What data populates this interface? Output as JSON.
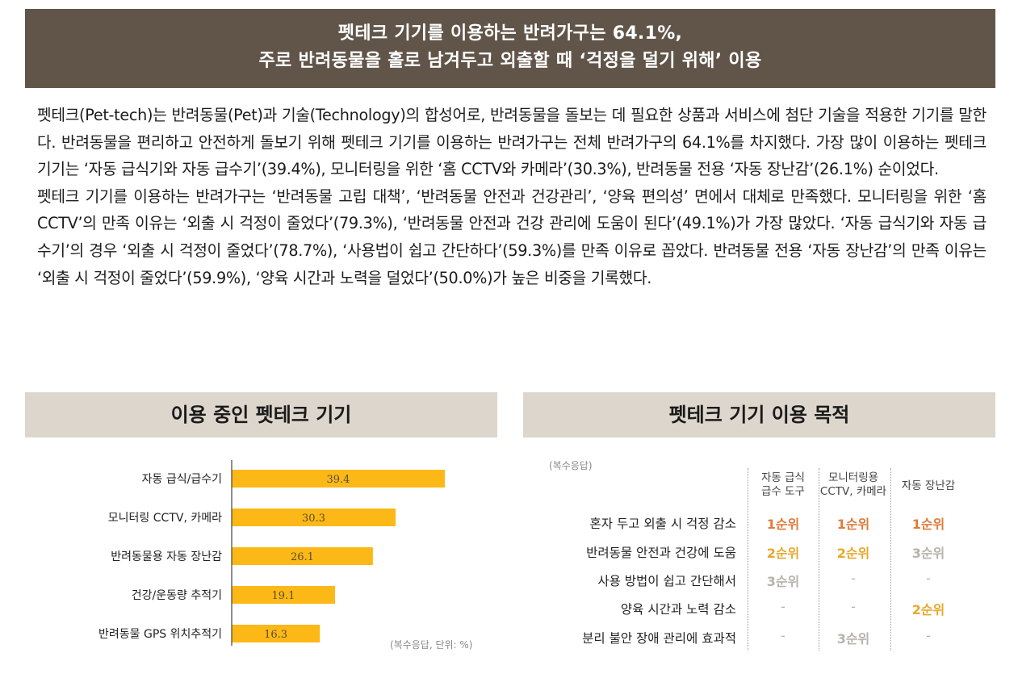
{
  "banner": {
    "line1": "펫테크 기기를 이용하는 반려가구는 64.1%,",
    "line2": "주로 반려동물을 홀로 남겨두고 외출할 때 ‘걱정을 덜기 위해’ 이용"
  },
  "paragraphs": [
    "펫테크(Pet-tech)는 반려동물(Pet)과 기술(Technology)의 합성어로, 반려동물을 돌보는 데 필요한 상품과 서비스에 첨단 기술을 적용한 기기를 말한다. 반려동물을 편리하고 안전하게 돌보기 위해 펫테크 기기를 이용하는 반려가구는 전체 반려가구의 64.1%를 차지했다. 가장 많이 이용하는 펫테크 기기는 ‘자동 급식기와 자동 급수기’(39.4%), 모니터링을 위한 ‘홈 CCTV와 카메라’(30.3%), 반려동물 전용 ‘자동 장난감’(26.1%) 순이었다.",
    "펫테크 기기를 이용하는 반려가구는 ‘반려동물 고립 대책’, ‘반려동물 안전과 건강관리’, ‘양육 편의성’ 면에서 대체로 만족했다. 모니터링을 위한 ‘홈 CCTV’의 만족 이유는 ‘외출 시 걱정이 줄었다’(79.3%), ‘반려동물 안전과 건강 관리에 도움이 된다’(49.1%)가 가장 많았다. ‘자동 급식기와 자동 급수기’의 경우 ‘외출 시 걱정이 줄었다’(78.7%), ‘사용법이 쉽고 간단하다’(59.3%)를 만족 이유로 꼽았다. 반려동물 전용 ‘자동 장난감’의 만족 이유는 ‘외출 시 걱정이 줄었다’(59.9%), ‘양육 시간과 노력을 덜었다’(50.0%)가 높은 비중을 기록했다."
  ],
  "left_section": {
    "title": "이용 중인 펫테크 기기",
    "note": "(복수응답, 단위: %)"
  },
  "right_section": {
    "title": "펫테크 기기 이용 목적",
    "note": "(복수응답)",
    "columns": [
      {
        "line1": "자동 급식",
        "line2": "급수 도구"
      },
      {
        "line1": "모니터링용",
        "line2": "CCTV, 카메라"
      },
      {
        "line1": "자동 장난감",
        "line2": ""
      }
    ],
    "rows": [
      {
        "label": "혼자 두고 외출 시 걱정 감소",
        "cells": [
          "1순위",
          "1순위",
          "1순위"
        ]
      },
      {
        "label": "반려동물 안전과 건강에 도움",
        "cells": [
          "2순위",
          "2순위",
          "3순위"
        ]
      },
      {
        "label": "사용 방법이 쉽고 간단해서",
        "cells": [
          "3순위",
          "-",
          "-"
        ]
      },
      {
        "label": "양육 시간과 노력 감소",
        "cells": [
          "-",
          "-",
          "2순위"
        ]
      },
      {
        "label": "분리 불안 장애 관리에 효과적",
        "cells": [
          "-",
          "3순위",
          "-"
        ]
      }
    ],
    "rank_colors": {
      "1순위": "#e07a3a",
      "2순위": "#e6a92a",
      "3순위": "#b8b2aa",
      "-": "#b8b2aa"
    }
  },
  "chart_data": {
    "type": "bar",
    "orientation": "horizontal",
    "categories": [
      "자동 급식/급수기",
      "모니터링 CCTV, 카메라",
      "반려동물용 자동 장난감",
      "건강/운동량 추적기",
      "반려동물 GPS 위치추적기"
    ],
    "values": [
      39.4,
      30.3,
      26.1,
      19.1,
      16.3
    ],
    "xlim": [
      0,
      50
    ],
    "bar_color": "#fbb816",
    "grid": false
  }
}
